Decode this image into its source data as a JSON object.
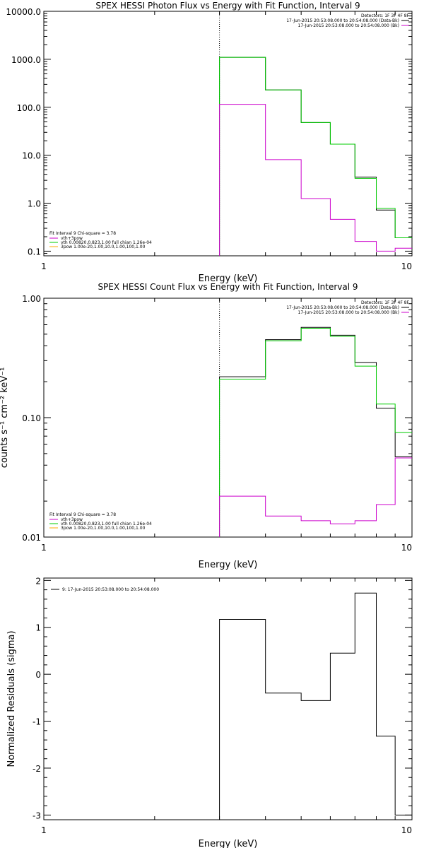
{
  "chart_data": [
    {
      "type": "line",
      "step": true,
      "title": "SPEX HESSI Photon Flux vs Energy with Fit Function, Interval 9",
      "xlabel": "Energy (keV)",
      "ylabel": "",
      "xscale": "log",
      "yscale": "log",
      "xlim": [
        1,
        10
      ],
      "ylim": [
        0.08,
        10000
      ],
      "xticks": [
        1,
        10
      ],
      "xtick_labels": [
        "1",
        "10"
      ],
      "yticks": [
        0.1,
        1,
        10,
        100,
        1000,
        10000
      ],
      "ytick_labels": [
        "0.1",
        "1.0",
        "10.0",
        "100.0",
        "1000.0",
        "10000.0"
      ],
      "vline_x": 3.0,
      "bin_edges": [
        3.0,
        4.0,
        5.0,
        6.0,
        7.0,
        8.0,
        9.0,
        10.0
      ],
      "series": [
        {
          "color": "#000000",
          "values": [
            1100,
            230,
            48,
            17,
            3.5,
            0.72,
            0.19
          ]
        },
        {
          "color": "#00cc00",
          "values": [
            1100,
            230,
            48,
            17,
            3.3,
            0.78,
            0.19
          ]
        },
        {
          "color": "#cc00cc",
          "values": [
            115,
            8.1,
            1.25,
            0.46,
            0.16,
            0.1,
            0.115
          ]
        }
      ],
      "legend_tr": {
        "header": "Detectors: 1F 3F 4F 8F",
        "entries": [
          {
            "label": "17-Jun-2015 20:53:08.000 to 20:54:08.000 (Data-Bk)",
            "color": "#000000"
          },
          {
            "label": "17-Jun-2015 20:53:08.000 to 20:54:08.000 (Bk)",
            "color": "#cc00cc"
          }
        ]
      },
      "legend_bl": {
        "header": "Fit Interval 9   Chi-square = 3.78",
        "entries": [
          {
            "label": "vth+3pow",
            "color": "#cc00cc"
          },
          {
            "label": "vth 0.00820,0.823,1.00   full chian 1.26e-04",
            "color": "#00cc00"
          },
          {
            "label": "3pow 1.00e-20,1.00,10.0,1.00,100,1.00",
            "color": "#ffaa00"
          }
        ]
      }
    },
    {
      "type": "line",
      "step": true,
      "title": "SPEX HESSI Count Flux vs Energy with Fit Function, Interval 9",
      "xlabel": "Energy (keV)",
      "ylabel": "counts s⁻¹ cm⁻² keV⁻¹",
      "xscale": "log",
      "yscale": "log",
      "xlim": [
        1,
        10
      ],
      "ylim": [
        0.01,
        1.0
      ],
      "xticks": [
        1,
        10
      ],
      "xtick_labels": [
        "1",
        "10"
      ],
      "yticks": [
        0.01,
        0.1,
        1.0
      ],
      "ytick_labels": [
        "0.01",
        "0.10",
        "1.00"
      ],
      "vline_x": 3.0,
      "bin_edges": [
        3.0,
        4.0,
        5.0,
        6.0,
        7.0,
        8.0,
        9.0,
        10.0
      ],
      "series": [
        {
          "color": "#000000",
          "values": [
            0.22,
            0.45,
            0.57,
            0.49,
            0.29,
            0.12,
            0.047
          ]
        },
        {
          "color": "#00cc00",
          "values": [
            0.21,
            0.44,
            0.56,
            0.48,
            0.27,
            0.13,
            0.075
          ]
        },
        {
          "color": "#cc00cc",
          "values": [
            0.022,
            0.015,
            0.0137,
            0.0129,
            0.0137,
            0.0187,
            0.046
          ]
        }
      ],
      "legend_tr": {
        "header": "Detectors: 1F 3F 4F 8F",
        "entries": [
          {
            "label": "17-Jun-2015 20:53:08.000 to 20:54:08.000 (Data-Bk)",
            "color": "#000000"
          },
          {
            "label": "17-Jun-2015 20:53:08.000 to 20:54:08.000 (Bk)",
            "color": "#cc00cc"
          }
        ]
      },
      "legend_bl": {
        "header": "Fit Interval 9   Chi-square = 3.78",
        "entries": [
          {
            "label": "vth+3pow",
            "color": "#cc00cc"
          },
          {
            "label": "vth 0.00820,0.823,1.00   full chian 1.26e-04",
            "color": "#00cc00"
          },
          {
            "label": "3pow 1.00e-20,1.00,10.0,1.00,100,1.00",
            "color": "#ffaa00"
          }
        ]
      }
    },
    {
      "type": "line",
      "step": true,
      "title": "",
      "xlabel": "Energy (keV)",
      "ylabel": "Normalized Residuals (sigma)",
      "xscale": "log",
      "yscale": "linear",
      "xlim": [
        1,
        10
      ],
      "ylim": [
        -3.1,
        2.05
      ],
      "xticks": [
        1,
        10
      ],
      "xtick_labels": [
        "1",
        "10"
      ],
      "yticks": [
        -3,
        -2,
        -1,
        0,
        1,
        2
      ],
      "ytick_labels": [
        "-3",
        "-2",
        "-1",
        "0",
        "1",
        "2"
      ],
      "bin_edges": [
        3.0,
        4.0,
        5.0,
        6.0,
        7.0,
        8.0,
        9.0,
        10.0
      ],
      "series": [
        {
          "color": "#000000",
          "values": [
            1.17,
            -0.4,
            -0.56,
            0.45,
            1.73,
            -1.32,
            -3.0
          ]
        }
      ],
      "legend_tl": {
        "entries": [
          {
            "label": "9: 17-Jun-2015 20:53:08.000 to 20:54:08.000",
            "color": "#000000"
          }
        ]
      }
    }
  ]
}
